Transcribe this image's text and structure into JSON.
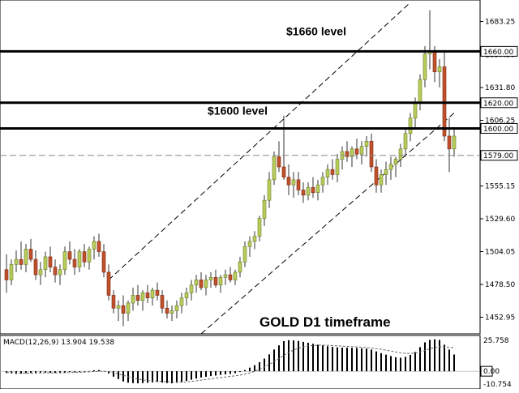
{
  "chart_data": {
    "type": "candlestick",
    "instrument_label": "GOLD D1 timeframe",
    "price_axis": {
      "range": [
        1440,
        1700
      ],
      "ticks": [
        "1683.25",
        "1657.50",
        "1631.80",
        "1606.25",
        "1580.70",
        "1555.15",
        "1529.60",
        "1504.05",
        "1478.50",
        "1452.95"
      ]
    },
    "levels": [
      {
        "value": 1660,
        "tag": "1660.00",
        "label": "$1660 level",
        "style": "bold"
      },
      {
        "value": 1620,
        "tag": "1620.00",
        "label": "",
        "style": "bold"
      },
      {
        "value": 1600,
        "tag": "1600.00",
        "label": "$1600 level",
        "style": "bold"
      },
      {
        "value": 1579,
        "tag": "1579.00",
        "label": "",
        "style": "dashed"
      }
    ],
    "channel": {
      "upper": {
        "from_bar": 21,
        "from_price": 1482,
        "to_bar": 83,
        "to_price": 1698
      },
      "lower": {
        "from_bar": 40,
        "from_price": 1440,
        "to_bar": 92,
        "to_price": 1612
      }
    },
    "ohlc": [
      [
        1490,
        1502,
        1472,
        1482
      ],
      [
        1482,
        1498,
        1478,
        1494
      ],
      [
        1494,
        1505,
        1488,
        1498
      ],
      [
        1498,
        1512,
        1490,
        1494
      ],
      [
        1494,
        1510,
        1488,
        1506
      ],
      [
        1506,
        1514,
        1496,
        1498
      ],
      [
        1498,
        1505,
        1482,
        1486
      ],
      [
        1486,
        1496,
        1478,
        1490
      ],
      [
        1490,
        1504,
        1484,
        1500
      ],
      [
        1500,
        1508,
        1488,
        1492
      ],
      [
        1492,
        1498,
        1480,
        1486
      ],
      [
        1486,
        1494,
        1478,
        1490
      ],
      [
        1490,
        1508,
        1486,
        1504
      ],
      [
        1504,
        1512,
        1494,
        1498
      ],
      [
        1498,
        1506,
        1486,
        1492
      ],
      [
        1492,
        1506,
        1488,
        1504
      ],
      [
        1504,
        1510,
        1492,
        1496
      ],
      [
        1496,
        1508,
        1490,
        1506
      ],
      [
        1506,
        1516,
        1498,
        1512
      ],
      [
        1512,
        1518,
        1500,
        1504
      ],
      [
        1504,
        1510,
        1484,
        1488
      ],
      [
        1488,
        1494,
        1466,
        1470
      ],
      [
        1470,
        1474,
        1456,
        1460
      ],
      [
        1460,
        1466,
        1450,
        1462
      ],
      [
        1462,
        1470,
        1446,
        1456
      ],
      [
        1456,
        1466,
        1450,
        1464
      ],
      [
        1464,
        1476,
        1458,
        1470
      ],
      [
        1470,
        1478,
        1462,
        1466
      ],
      [
        1466,
        1474,
        1458,
        1472
      ],
      [
        1472,
        1478,
        1464,
        1468
      ],
      [
        1468,
        1476,
        1462,
        1474
      ],
      [
        1474,
        1480,
        1466,
        1470
      ],
      [
        1470,
        1474,
        1456,
        1460
      ],
      [
        1460,
        1466,
        1452,
        1456
      ],
      [
        1456,
        1462,
        1450,
        1458
      ],
      [
        1458,
        1466,
        1452,
        1462
      ],
      [
        1462,
        1472,
        1456,
        1468
      ],
      [
        1468,
        1476,
        1462,
        1472
      ],
      [
        1472,
        1482,
        1466,
        1478
      ],
      [
        1478,
        1486,
        1472,
        1482
      ],
      [
        1482,
        1488,
        1474,
        1476
      ],
      [
        1476,
        1486,
        1470,
        1482
      ],
      [
        1482,
        1488,
        1476,
        1484
      ],
      [
        1484,
        1490,
        1476,
        1478
      ],
      [
        1478,
        1486,
        1472,
        1484
      ],
      [
        1484,
        1490,
        1478,
        1486
      ],
      [
        1486,
        1492,
        1480,
        1482
      ],
      [
        1482,
        1490,
        1478,
        1488
      ],
      [
        1488,
        1500,
        1484,
        1496
      ],
      [
        1496,
        1512,
        1492,
        1508
      ],
      [
        1508,
        1516,
        1500,
        1512
      ],
      [
        1512,
        1520,
        1506,
        1516
      ],
      [
        1516,
        1532,
        1512,
        1530
      ],
      [
        1530,
        1548,
        1524,
        1544
      ],
      [
        1544,
        1566,
        1538,
        1560
      ],
      [
        1560,
        1582,
        1556,
        1578
      ],
      [
        1578,
        1590,
        1566,
        1570
      ],
      [
        1570,
        1610,
        1560,
        1562
      ],
      [
        1562,
        1572,
        1548,
        1556
      ],
      [
        1556,
        1566,
        1546,
        1560
      ],
      [
        1560,
        1566,
        1548,
        1552
      ],
      [
        1552,
        1558,
        1542,
        1548
      ],
      [
        1548,
        1558,
        1544,
        1554
      ],
      [
        1554,
        1562,
        1546,
        1550
      ],
      [
        1550,
        1560,
        1544,
        1556
      ],
      [
        1556,
        1566,
        1550,
        1562
      ],
      [
        1562,
        1572,
        1556,
        1568
      ],
      [
        1568,
        1576,
        1560,
        1564
      ],
      [
        1564,
        1580,
        1558,
        1576
      ],
      [
        1576,
        1586,
        1568,
        1582
      ],
      [
        1582,
        1590,
        1574,
        1578
      ],
      [
        1578,
        1586,
        1570,
        1584
      ],
      [
        1584,
        1592,
        1576,
        1580
      ],
      [
        1580,
        1590,
        1572,
        1586
      ],
      [
        1586,
        1594,
        1578,
        1590
      ],
      [
        1590,
        1596,
        1566,
        1570
      ],
      [
        1570,
        1576,
        1550,
        1556
      ],
      [
        1556,
        1568,
        1550,
        1564
      ],
      [
        1564,
        1574,
        1556,
        1568
      ],
      [
        1568,
        1578,
        1560,
        1572
      ],
      [
        1572,
        1578,
        1562,
        1576
      ],
      [
        1576,
        1588,
        1570,
        1584
      ],
      [
        1584,
        1600,
        1578,
        1596
      ],
      [
        1596,
        1612,
        1590,
        1608
      ],
      [
        1608,
        1624,
        1600,
        1620
      ],
      [
        1620,
        1642,
        1614,
        1638
      ],
      [
        1638,
        1664,
        1632,
        1658
      ],
      [
        1658,
        1692,
        1646,
        1660
      ],
      [
        1660,
        1664,
        1636,
        1644
      ],
      [
        1644,
        1654,
        1632,
        1648
      ],
      [
        1648,
        1660,
        1590,
        1594
      ],
      [
        1594,
        1608,
        1566,
        1584
      ],
      [
        1584,
        1600,
        1578,
        1594
      ]
    ],
    "macd": {
      "label": "MACD(12,26,9) 13.904 19.538",
      "range": [
        -12,
        27
      ],
      "ticks": [
        "25.758",
        "0.00",
        "-10.754"
      ],
      "histogram": [
        -1.5,
        -1.8,
        -2.2,
        -2.0,
        -1.6,
        -1.4,
        -1.2,
        -1.0,
        -1.1,
        -1.3,
        -1.5,
        -1.4,
        -1.0,
        -0.6,
        -0.8,
        -0.5,
        -0.3,
        0.2,
        0.8,
        1.0,
        0.2,
        -1.8,
        -4.5,
        -6.5,
        -8.5,
        -9.5,
        -9.8,
        -10.0,
        -9.8,
        -9.6,
        -9.3,
        -9.0,
        -9.4,
        -9.8,
        -10.0,
        -9.6,
        -9.0,
        -8.0,
        -7.0,
        -6.0,
        -5.2,
        -4.6,
        -4.0,
        -3.6,
        -3.0,
        -2.6,
        -2.2,
        -1.6,
        -0.6,
        1.0,
        3.0,
        5.0,
        7.5,
        10.5,
        14.0,
        18.0,
        21.5,
        25.0,
        25.8,
        25.6,
        25.2,
        24.4,
        23.6,
        22.8,
        22.0,
        21.4,
        20.8,
        20.2,
        19.8,
        19.6,
        19.6,
        19.4,
        19.4,
        19.0,
        18.8,
        18.0,
        16.5,
        15.0,
        13.8,
        12.6,
        11.6,
        11.2,
        12.0,
        13.6,
        16.0,
        20.0,
        24.0,
        26.0,
        26.5,
        26.0,
        22.0,
        18.0,
        13.9
      ],
      "signal": [
        -1.0,
        -1.2,
        -1.4,
        -1.6,
        -1.6,
        -1.6,
        -1.5,
        -1.4,
        -1.3,
        -1.3,
        -1.3,
        -1.3,
        -1.2,
        -1.1,
        -1.0,
        -0.9,
        -0.7,
        -0.5,
        -0.2,
        0.0,
        0.0,
        -0.4,
        -1.2,
        -2.2,
        -3.4,
        -4.6,
        -5.6,
        -6.5,
        -7.2,
        -7.7,
        -8.0,
        -8.2,
        -8.4,
        -8.7,
        -8.9,
        -9.0,
        -9.0,
        -8.8,
        -8.4,
        -8.0,
        -7.4,
        -6.8,
        -6.3,
        -5.8,
        -5.3,
        -4.8,
        -4.3,
        -3.8,
        -3.2,
        -2.4,
        -1.4,
        0.0,
        1.6,
        3.4,
        5.6,
        8.0,
        10.6,
        13.2,
        15.6,
        17.6,
        19.1,
        20.2,
        21.0,
        21.4,
        21.6,
        21.6,
        21.5,
        21.3,
        21.1,
        20.8,
        20.6,
        20.4,
        20.2,
        19.9,
        19.6,
        19.3,
        18.8,
        18.2,
        17.5,
        16.8,
        16.0,
        15.2,
        14.8,
        14.8,
        15.2,
        16.0,
        17.2,
        18.6,
        19.8,
        20.4,
        20.3,
        19.8,
        19.5
      ]
    }
  }
}
